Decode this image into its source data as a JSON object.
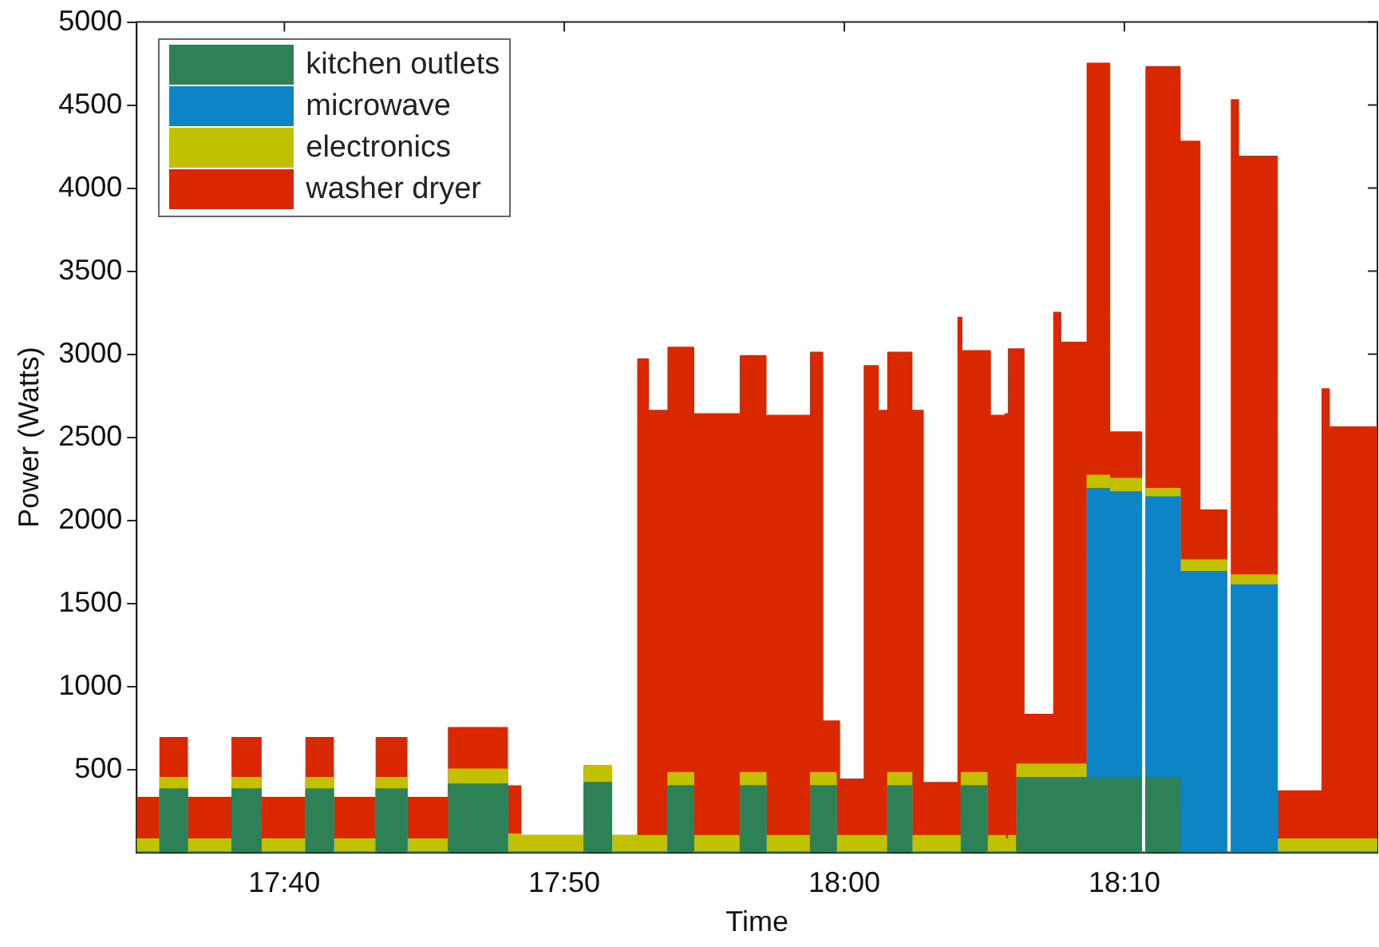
{
  "chart_data": {
    "type": "area",
    "stacked": true,
    "xlabel": "Time",
    "ylabel": "Power (Watts)",
    "x": [
      17.5788,
      17.5928,
      17.5928,
      17.6088,
      17.6088,
      17.6357,
      17.6357,
      17.6527,
      17.6527,
      17.6797,
      17.6797,
      17.6957,
      17.6957,
      17.7215,
      17.7215,
      17.7395,
      17.7395,
      17.7645,
      17.7645,
      17.7993,
      17.7993,
      17.8073,
      17.8073,
      17.8453,
      17.8453,
      17.8613,
      17.8613,
      17.8772,
      17.8772,
      17.8832,
      17.8832,
      17.8952,
      17.8952,
      17.9102,
      17.9102,
      17.9382,
      17.9382,
      17.9532,
      17.9532,
      17.98,
      17.98,
      17.987,
      17.987,
      17.995,
      17.995,
      17.997,
      17.997,
      18.012,
      18.012,
      18.02,
      18.02,
      18.026,
      18.026,
      18.04,
      18.04,
      18.0468,
      18.0468,
      18.0678,
      18.0678,
      18.0698,
      18.0698,
      18.0848,
      18.0848,
      18.0868,
      18.0868,
      18.0958,
      18.0958,
      18.0978,
      18.0978,
      18.1028,
      18.1028,
      18.1068,
      18.1068,
      18.1248,
      18.1248,
      18.1287,
      18.1287,
      18.1447,
      18.1447,
      18.1577,
      18.1577,
      18.1767,
      18.1767,
      18.1797,
      18.1797,
      18.1997,
      18.1997,
      18.2115,
      18.2115,
      18.2275,
      18.2275,
      18.2305,
      18.2305,
      18.2345,
      18.2345,
      18.2575,
      18.2575,
      18.2845,
      18.2845,
      18.2885,
      18.2885,
      18.3173
    ],
    "series": [
      {
        "name": "kitchen outlets",
        "color": "#2e8057",
        "values": [
          0,
          0,
          380,
          380,
          0,
          0,
          380,
          380,
          0,
          0,
          380,
          380,
          0,
          0,
          380,
          380,
          0,
          0,
          410,
          410,
          0,
          0,
          0,
          0,
          420,
          420,
          0,
          0,
          0,
          0,
          0,
          0,
          400,
          400,
          0,
          0,
          400,
          400,
          0,
          0,
          400,
          400,
          400,
          400,
          0,
          0,
          0,
          0,
          0,
          0,
          0,
          0,
          400,
          400,
          0,
          0,
          0,
          0,
          0,
          0,
          400,
          400,
          0,
          0,
          0,
          0,
          0,
          0,
          0,
          0,
          450,
          450,
          450,
          450,
          450,
          450,
          450,
          450,
          450,
          450,
          450,
          450,
          0,
          0,
          450,
          450,
          0,
          0,
          0,
          0,
          0,
          0,
          0,
          0,
          0,
          0,
          0,
          0,
          0,
          0,
          0,
          0
        ]
      },
      {
        "name": "microwave",
        "color": "#0c84c6",
        "values": [
          0,
          0,
          0,
          0,
          0,
          0,
          0,
          0,
          0,
          0,
          0,
          0,
          0,
          0,
          0,
          0,
          0,
          0,
          0,
          0,
          0,
          0,
          0,
          0,
          0,
          0,
          0,
          0,
          0,
          0,
          0,
          0,
          0,
          0,
          0,
          0,
          0,
          0,
          0,
          0,
          0,
          0,
          0,
          0,
          0,
          0,
          0,
          0,
          0,
          0,
          0,
          0,
          0,
          0,
          0,
          0,
          0,
          0,
          0,
          0,
          0,
          0,
          0,
          0,
          0,
          0,
          0,
          0,
          0,
          0,
          0,
          0,
          0,
          0,
          0,
          0,
          0,
          0,
          1740,
          1740,
          1720,
          1720,
          0,
          0,
          1690,
          1690,
          1690,
          1690,
          1690,
          1690,
          0,
          0,
          1610,
          1610,
          1610,
          1610,
          0,
          0,
          0,
          0,
          0,
          0
        ]
      },
      {
        "name": "electronics",
        "color": "#c1c100",
        "values": [
          80,
          80,
          70,
          70,
          80,
          80,
          70,
          70,
          80,
          80,
          70,
          70,
          80,
          80,
          70,
          70,
          80,
          80,
          90,
          90,
          110,
          110,
          100,
          100,
          100,
          100,
          100,
          100,
          100,
          100,
          100,
          100,
          80,
          80,
          100,
          100,
          80,
          80,
          100,
          100,
          80,
          80,
          80,
          80,
          100,
          100,
          100,
          100,
          100,
          100,
          100,
          100,
          80,
          80,
          100,
          100,
          100,
          100,
          100,
          100,
          80,
          80,
          100,
          100,
          100,
          100,
          80,
          80,
          100,
          100,
          80,
          80,
          80,
          80,
          80,
          80,
          80,
          80,
          80,
          80,
          80,
          80,
          0,
          0,
          50,
          50,
          70,
          70,
          70,
          70,
          0,
          0,
          60,
          60,
          60,
          60,
          80,
          80,
          80,
          80,
          80,
          80
        ]
      },
      {
        "name": "washer dryer",
        "color": "#d92800",
        "values": [
          250,
          250,
          240,
          240,
          250,
          250,
          240,
          240,
          250,
          250,
          240,
          240,
          250,
          250,
          240,
          240,
          250,
          250,
          250,
          250,
          290,
          290,
          0,
          0,
          0,
          0,
          0,
          0,
          2870,
          2870,
          2560,
          2560,
          2560,
          2560,
          2540,
          2540,
          2510,
          2510,
          2530,
          2530,
          2530,
          2530,
          310,
          310,
          690,
          690,
          340,
          340,
          2830,
          2830,
          2560,
          2560,
          2530,
          2530,
          2560,
          2560,
          320,
          320,
          3120,
          3120,
          2540,
          2540,
          2920,
          2920,
          2530,
          2530,
          2560,
          2560,
          2930,
          2930,
          2500,
          2500,
          300,
          300,
          2720,
          2720,
          2540,
          2540,
          2480,
          2480,
          280,
          280,
          0,
          0,
          2540,
          2540,
          2520,
          2520,
          300,
          300,
          0,
          0,
          2860,
          2860,
          2520,
          2520,
          290,
          290,
          2710,
          2710,
          2480,
          2480
        ]
      }
    ],
    "xlim": [
      17.5788,
      18.3173
    ],
    "xticks": [
      {
        "value": 17.6667,
        "label": "17:40"
      },
      {
        "value": 17.8333,
        "label": "17:50"
      },
      {
        "value": 18,
        "label": "18:00"
      },
      {
        "value": 18.1667,
        "label": "18:10"
      }
    ],
    "ylim": [
      0,
      5000
    ],
    "yticks": [
      500,
      1000,
      1500,
      2000,
      2500,
      3000,
      3500,
      4000,
      4500,
      5000
    ],
    "legend": "top left"
  }
}
